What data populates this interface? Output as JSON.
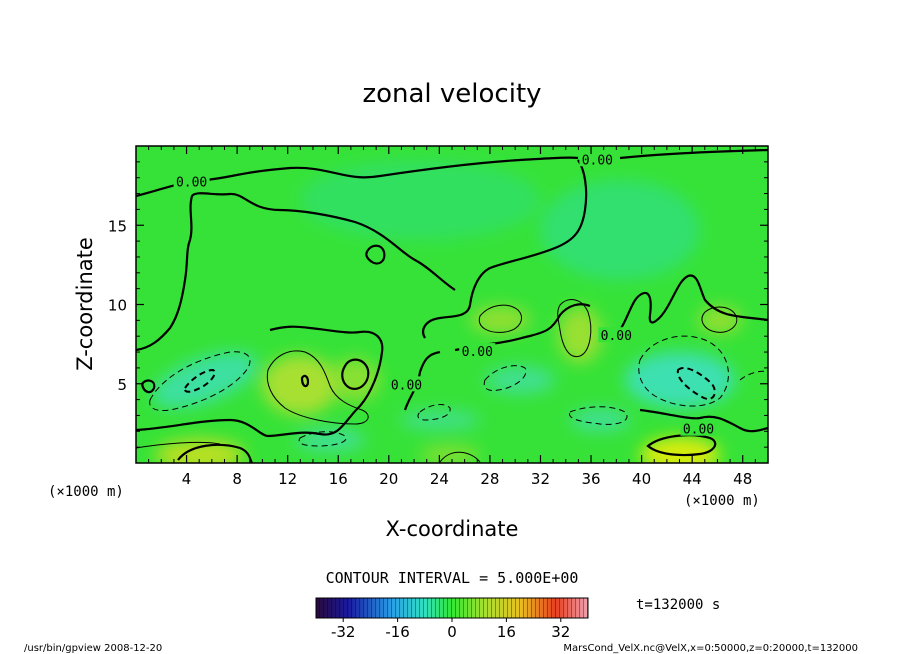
{
  "chart_data": {
    "type": "heatmap",
    "title": "zonal velocity",
    "xlabel": "X-coordinate",
    "ylabel": "Z-coordinate",
    "x_unit_left": "(×1000 m)",
    "x_unit_right": "(×1000 m)",
    "xlim": [
      0,
      50
    ],
    "ylim": [
      0,
      20
    ],
    "x_ticks": [
      4,
      8,
      12,
      16,
      20,
      24,
      28,
      32,
      36,
      40,
      44,
      48
    ],
    "y_ticks": [
      5,
      10,
      15
    ],
    "contour_interval_text": "CONTOUR INTERVAL = 5.000E+00",
    "contour_labels": [
      {
        "text": "0.00",
        "x": 4.4,
        "y": 17.7
      },
      {
        "text": "0.00",
        "x": 36.5,
        "y": 19.1
      },
      {
        "text": "0.00",
        "x": 27.0,
        "y": 7.0
      },
      {
        "text": "0.00",
        "x": 21.4,
        "y": 4.9
      },
      {
        "text": "0.00",
        "x": 38.0,
        "y": 8.0
      },
      {
        "text": "0.00",
        "x": 44.5,
        "y": 2.1
      }
    ],
    "colorbar": {
      "range": [
        -40,
        40
      ],
      "ticks": [
        -32,
        -16,
        0,
        16,
        32
      ],
      "tick_labels": [
        "-32",
        "-16",
        "0",
        "16",
        "32"
      ]
    },
    "time_label": "t=132000 s",
    "footer_left": "/usr/bin/gpview  2008-12-20",
    "footer_right": "MarsCond_VelX.nc@VelX,x=0:50000,z=0:20000,t=132000"
  },
  "colors": {
    "background_field": "#33e633",
    "positive_patch": "#b8e02a",
    "strong_positive": "#e8f000",
    "negative_patch": "#33e0a0",
    "strong_negative": "#40e8c8",
    "contour": "#000000"
  }
}
